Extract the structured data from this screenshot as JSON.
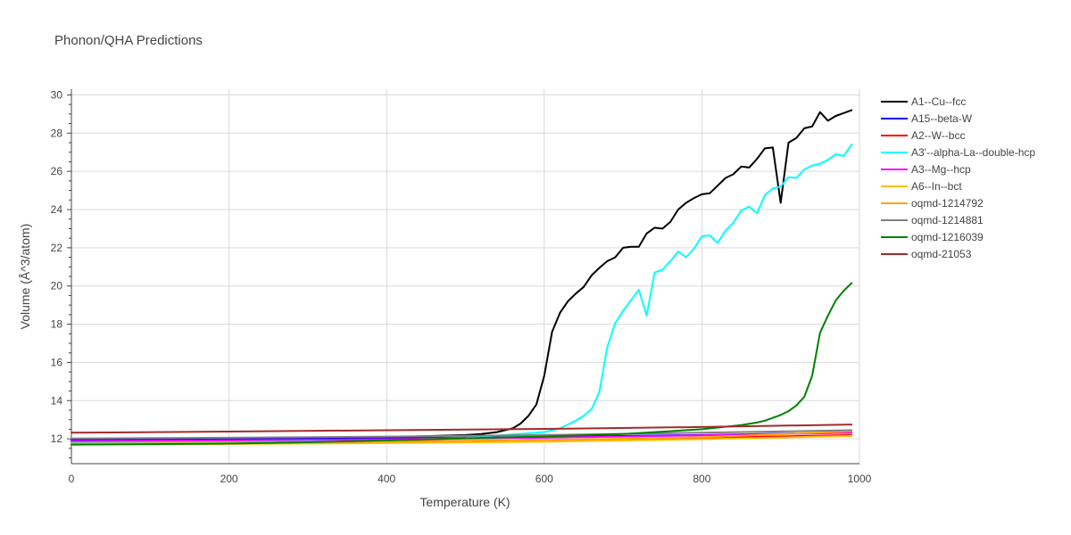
{
  "chart_data": {
    "type": "line",
    "title": "Phonon/QHA Predictions",
    "xlabel": "Temperature (K)",
    "ylabel": "Volume (Å^3/atom)",
    "xlim": [
      0,
      1000
    ],
    "ylim": [
      10.7,
      30.3
    ],
    "x_ticks": [
      0,
      200,
      400,
      600,
      800,
      1000
    ],
    "y_ticks": [
      12,
      14,
      16,
      18,
      20,
      22,
      24,
      26,
      28,
      30
    ],
    "grid": true,
    "legend_position": "right",
    "series": [
      {
        "name": "A1--Cu--fcc",
        "color": "#000000",
        "x": [
          0,
          100,
          200,
          300,
          400,
          500,
          520,
          540,
          560,
          570,
          580,
          590,
          600,
          610,
          620,
          630,
          640,
          650,
          660,
          670,
          680,
          690,
          700,
          710,
          720,
          730,
          740,
          750,
          760,
          770,
          780,
          790,
          800,
          810,
          820,
          830,
          840,
          850,
          860,
          870,
          880,
          890,
          900,
          910,
          920,
          930,
          940,
          950,
          960,
          970,
          980,
          990
        ],
        "y": [
          11.83,
          11.87,
          11.93,
          12.0,
          12.08,
          12.2,
          12.25,
          12.35,
          12.55,
          12.8,
          13.2,
          13.8,
          15.3,
          17.6,
          18.6,
          19.2,
          19.6,
          19.95,
          20.55,
          20.95,
          21.3,
          21.5,
          22.0,
          22.05,
          22.05,
          22.75,
          23.05,
          23.0,
          23.35,
          24.0,
          24.35,
          24.6,
          24.8,
          24.85,
          25.25,
          25.65,
          25.85,
          26.25,
          26.2,
          26.65,
          27.2,
          27.25,
          24.35,
          27.5,
          27.75,
          28.25,
          28.35,
          29.1,
          28.65,
          28.9,
          29.05,
          29.2
        ]
      },
      {
        "name": "A15--beta-W",
        "color": "#0000ff",
        "x": [
          0,
          200,
          400,
          600,
          800,
          990
        ],
        "y": [
          11.95,
          11.98,
          12.03,
          12.1,
          12.2,
          12.33
        ]
      },
      {
        "name": "A2--W--bcc",
        "color": "#ff0000",
        "x": [
          0,
          200,
          400,
          600,
          800,
          990
        ],
        "y": [
          11.78,
          11.81,
          11.86,
          11.93,
          12.05,
          12.2
        ]
      },
      {
        "name": "A3'--alpha-La--double-hcp",
        "color": "#00ffff",
        "x": [
          0,
          200,
          400,
          500,
          600,
          620,
          630,
          640,
          650,
          660,
          670,
          680,
          690,
          700,
          710,
          720,
          730,
          740,
          750,
          760,
          770,
          780,
          790,
          800,
          810,
          820,
          830,
          840,
          850,
          860,
          870,
          880,
          890,
          900,
          910,
          920,
          930,
          940,
          950,
          960,
          970,
          980,
          990
        ],
        "y": [
          11.82,
          11.87,
          11.95,
          12.05,
          12.35,
          12.55,
          12.75,
          12.95,
          13.2,
          13.55,
          14.45,
          16.8,
          18.05,
          18.7,
          19.25,
          19.8,
          18.45,
          20.7,
          20.85,
          21.3,
          21.8,
          21.5,
          21.95,
          22.6,
          22.65,
          22.25,
          22.9,
          23.3,
          23.95,
          24.15,
          23.8,
          24.75,
          25.1,
          25.2,
          25.7,
          25.65,
          26.1,
          26.3,
          26.4,
          26.6,
          26.9,
          26.8,
          27.4
        ]
      },
      {
        "name": "A3--Mg--hcp",
        "color": "#ff00ff",
        "x": [
          0,
          200,
          400,
          600,
          800,
          990
        ],
        "y": [
          11.88,
          11.92,
          11.98,
          12.06,
          12.18,
          12.32
        ]
      },
      {
        "name": "A6--In--bct",
        "color": "#ffc000",
        "x": [
          0,
          200,
          400,
          600,
          800,
          990
        ],
        "y": [
          11.7,
          11.73,
          11.78,
          11.85,
          11.98,
          12.15
        ]
      },
      {
        "name": "oqmd-1214792",
        "color": "#ffa500",
        "x": [
          0,
          200,
          400,
          600,
          800,
          990
        ],
        "y": [
          11.75,
          11.78,
          11.84,
          11.93,
          12.08,
          12.4
        ]
      },
      {
        "name": "oqmd-1214881",
        "color": "#808080",
        "x": [
          0,
          200,
          400,
          600,
          800,
          990
        ],
        "y": [
          12.02,
          12.06,
          12.12,
          12.2,
          12.32,
          12.45
        ]
      },
      {
        "name": "oqmd-1216039",
        "color": "#008000",
        "x": [
          0,
          100,
          200,
          300,
          400,
          500,
          600,
          700,
          800,
          850,
          870,
          880,
          890,
          900,
          910,
          920,
          930,
          940,
          950,
          960,
          970,
          980,
          990
        ],
        "y": [
          11.7,
          11.72,
          11.75,
          11.82,
          11.92,
          12.03,
          12.12,
          12.25,
          12.5,
          12.72,
          12.85,
          12.95,
          13.1,
          13.25,
          13.45,
          13.75,
          14.2,
          15.3,
          17.55,
          18.45,
          19.25,
          19.75,
          20.15
        ]
      },
      {
        "name": "oqmd-21053",
        "color": "#a52a2a",
        "x": [
          0,
          200,
          400,
          600,
          800,
          990
        ],
        "y": [
          12.32,
          12.38,
          12.45,
          12.52,
          12.62,
          12.75
        ]
      }
    ]
  }
}
